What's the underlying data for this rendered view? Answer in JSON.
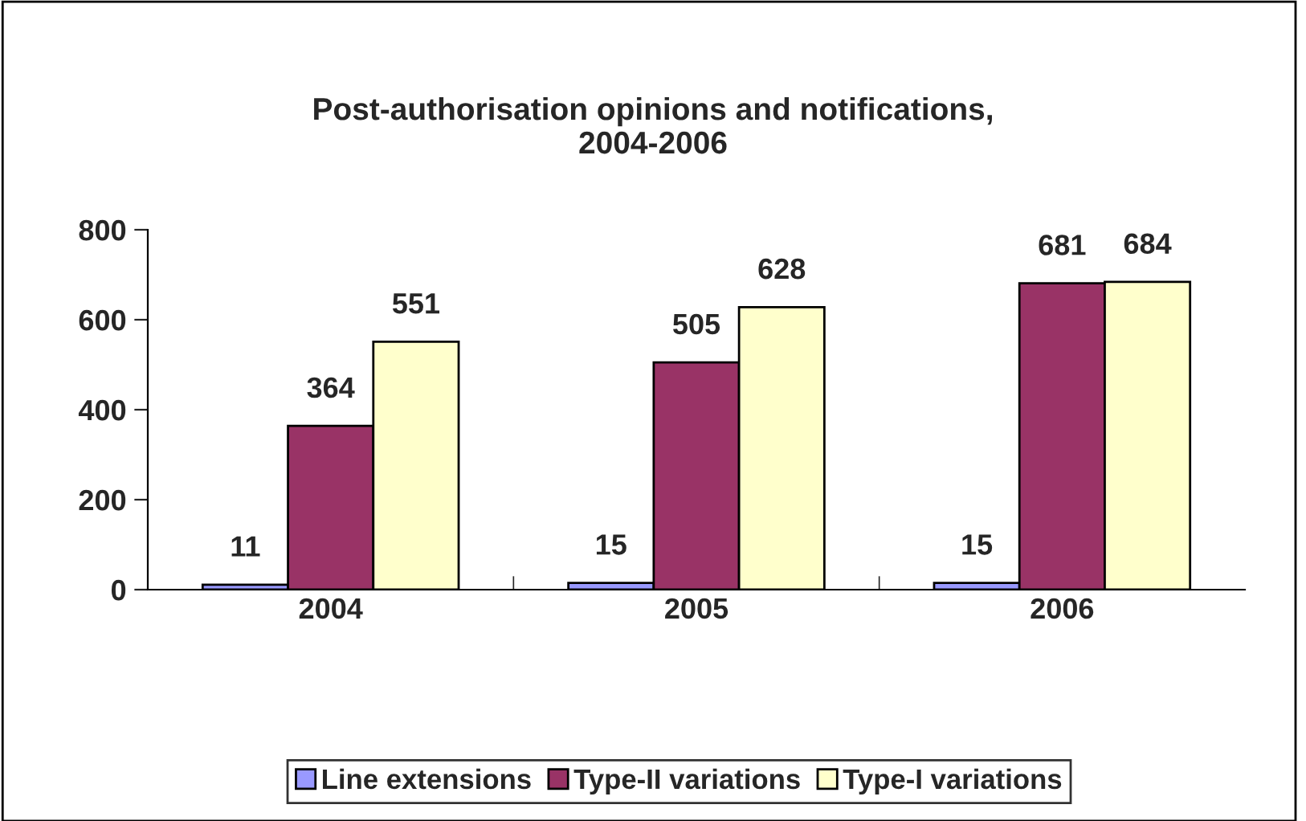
{
  "chart_data": {
    "type": "bar",
    "title": "Post-authorisation opinions and notifications,\n2004-2006",
    "categories": [
      "2004",
      "2005",
      "2006"
    ],
    "series": [
      {
        "name": "Line extensions",
        "color": "#9999ff",
        "values": [
          11,
          15,
          15
        ]
      },
      {
        "name": "Type-II variations",
        "color": "#993366",
        "values": [
          364,
          505,
          681
        ]
      },
      {
        "name": "Type-I variations",
        "color": "#ffffcc",
        "values": [
          551,
          628,
          684
        ]
      }
    ],
    "ylim": [
      0,
      800
    ],
    "yticks": [
      0,
      200,
      400,
      600,
      800
    ],
    "grid": false,
    "data_labels": true,
    "legend": "bottom"
  }
}
